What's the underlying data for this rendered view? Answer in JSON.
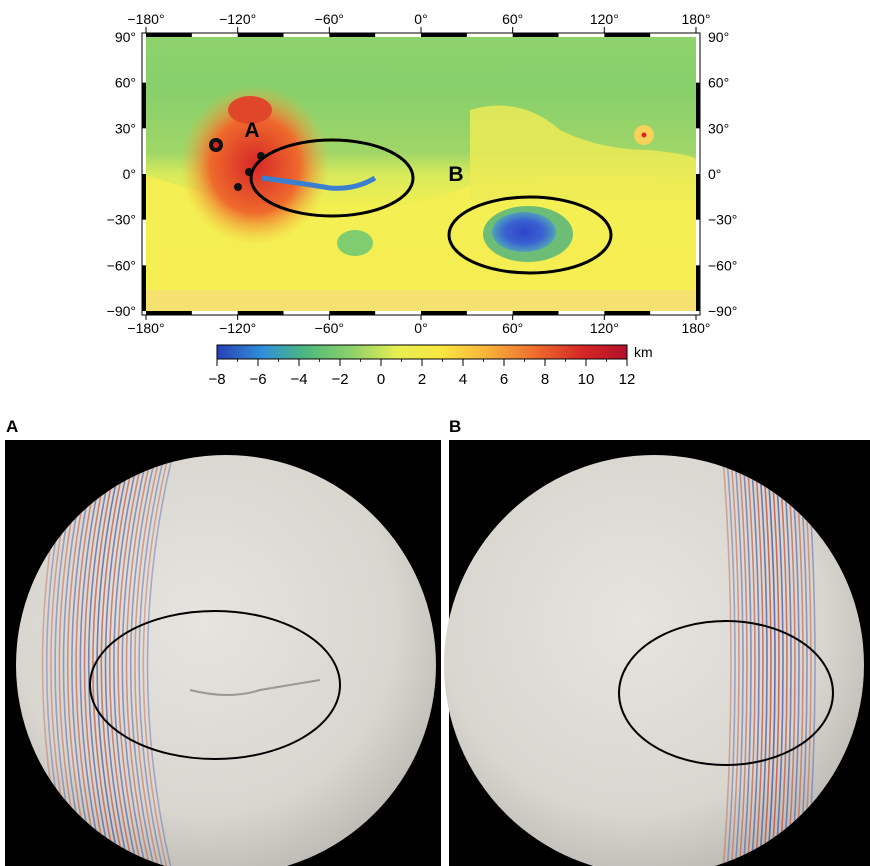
{
  "map": {
    "lon_ticks": [
      "−180°",
      "−120°",
      "−60°",
      "0°",
      "60°",
      "120°",
      "180°"
    ],
    "lat_ticks": [
      "90°",
      "60°",
      "30°",
      "0°",
      "−30°",
      "−60°",
      "−90°"
    ],
    "region_labels": [
      "A",
      "B"
    ]
  },
  "colorbar": {
    "unit": "km",
    "tick_labels": [
      "−8",
      "−6",
      "−4",
      "−2",
      "0",
      "2",
      "4",
      "6",
      "8",
      "10",
      "12"
    ],
    "range": [
      -8,
      12
    ],
    "colors": [
      "#2b3fb5",
      "#2f8fd9",
      "#4fb97a",
      "#8fd16a",
      "#e8ef52",
      "#f9e640",
      "#f7b13a",
      "#ee6a2c",
      "#d62728",
      "#b3102a"
    ]
  },
  "panels": [
    {
      "label": "A"
    },
    {
      "label": "B"
    }
  ]
}
